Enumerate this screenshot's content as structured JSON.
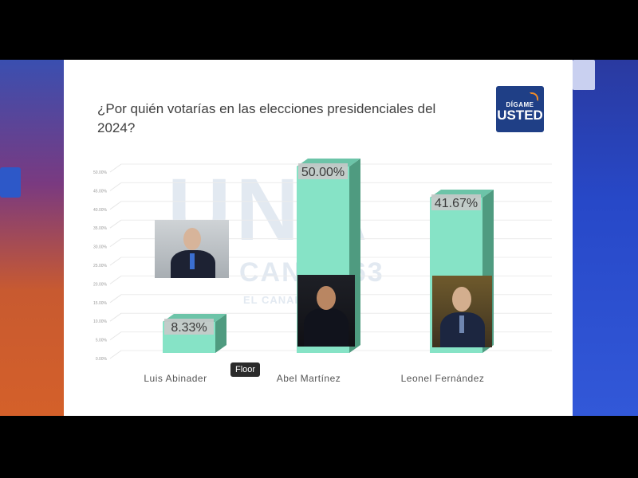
{
  "slide": {
    "title": "¿Por quién votarías en las elecciones presidenciales del 2024?",
    "logo_line1": "DÍGAME",
    "logo_line2": "USTED",
    "watermark_line1": "UNA",
    "watermark_line2": "CANAL 63",
    "watermark_line3": "EL CANAL DE LA ...",
    "tooltip": "Floor"
  },
  "colors": {
    "bar_front": "#86e3c6",
    "bar_side": "#4f9b80",
    "label_bg": "#c9c9c9"
  },
  "chart_data": {
    "type": "bar",
    "categories": [
      "Luis Abinader",
      "Abel Martínez",
      "Leonel Fernández"
    ],
    "values": [
      8.33,
      50.0,
      41.67
    ],
    "data_labels": [
      "8.33%",
      "50.00%",
      "41.67%"
    ],
    "ylim": [
      0,
      50
    ],
    "yticks": [
      "0.00%",
      "5.00%",
      "10.00%",
      "15.00%",
      "20.00%",
      "25.00%",
      "30.00%",
      "35.00%",
      "40.00%",
      "45.00%",
      "50.00%"
    ],
    "grid": true
  }
}
